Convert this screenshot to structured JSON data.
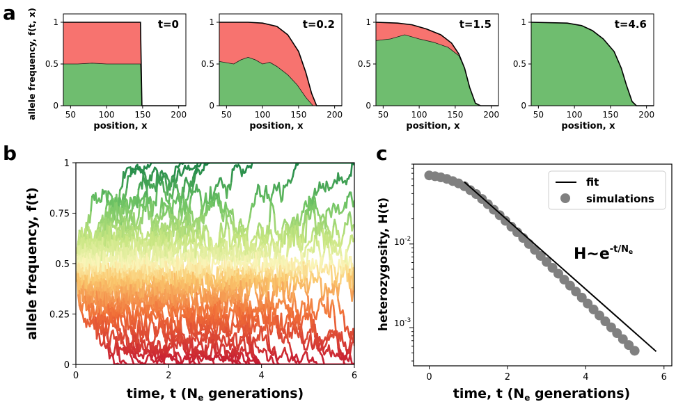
{
  "figure": {
    "panel_labels": [
      "a",
      "b",
      "c"
    ],
    "tick_labels_log": [
      "10",
      "-2",
      "10",
      "-3"
    ]
  },
  "chart_data": [
    {
      "panel": "a",
      "type": "area",
      "ylabel": "allele frequency, f(t, x)",
      "xlabel": "position, x",
      "xticks": [
        "50",
        "100",
        "150",
        "200"
      ],
      "yticks": [
        "0",
        "0.5",
        "1"
      ],
      "xlim": [
        40,
        210
      ],
      "ylim": [
        0,
        1.1
      ],
      "colors": {
        "total": "#f7736f",
        "green": "#6fbd6f",
        "line": "#000000"
      },
      "subplots": [
        {
          "label": "t=0",
          "total": [
            [
              40,
              1
            ],
            [
              147,
              1
            ],
            [
              149,
              0
            ],
            [
              210,
              0
            ]
          ],
          "green": [
            [
              40,
              0.5
            ],
            [
              60,
              0.5
            ],
            [
              80,
              0.51
            ],
            [
              100,
              0.5
            ],
            [
              120,
              0.5
            ],
            [
              147,
              0.5
            ],
            [
              149,
              0
            ],
            [
              210,
              0
            ]
          ]
        },
        {
          "label": "t=0.2",
          "total": [
            [
              40,
              1
            ],
            [
              80,
              1
            ],
            [
              100,
              0.99
            ],
            [
              120,
              0.95
            ],
            [
              135,
              0.85
            ],
            [
              150,
              0.65
            ],
            [
              160,
              0.4
            ],
            [
              168,
              0.15
            ],
            [
              175,
              0
            ],
            [
              210,
              0
            ]
          ],
          "green": [
            [
              40,
              0.53
            ],
            [
              60,
              0.5
            ],
            [
              70,
              0.55
            ],
            [
              80,
              0.58
            ],
            [
              90,
              0.55
            ],
            [
              100,
              0.5
            ],
            [
              110,
              0.52
            ],
            [
              120,
              0.47
            ],
            [
              135,
              0.37
            ],
            [
              148,
              0.25
            ],
            [
              160,
              0.1
            ],
            [
              170,
              0
            ],
            [
              210,
              0
            ]
          ]
        },
        {
          "label": "t=1.5",
          "total": [
            [
              40,
              1
            ],
            [
              70,
              0.99
            ],
            [
              90,
              0.97
            ],
            [
              110,
              0.92
            ],
            [
              130,
              0.85
            ],
            [
              145,
              0.75
            ],
            [
              155,
              0.62
            ],
            [
              163,
              0.45
            ],
            [
              170,
              0.22
            ],
            [
              178,
              0.03
            ],
            [
              185,
              0
            ],
            [
              210,
              0
            ]
          ],
          "green": [
            [
              40,
              0.78
            ],
            [
              60,
              0.8
            ],
            [
              80,
              0.85
            ],
            [
              100,
              0.8
            ],
            [
              120,
              0.76
            ],
            [
              140,
              0.7
            ],
            [
              155,
              0.6
            ],
            [
              163,
              0.45
            ],
            [
              170,
              0.22
            ],
            [
              178,
              0.03
            ],
            [
              185,
              0
            ],
            [
              210,
              0
            ]
          ]
        },
        {
          "label": "t=4.6",
          "total": [
            [
              40,
              1
            ],
            [
              90,
              0.99
            ],
            [
              110,
              0.96
            ],
            [
              125,
              0.9
            ],
            [
              140,
              0.8
            ],
            [
              155,
              0.65
            ],
            [
              165,
              0.45
            ],
            [
              172,
              0.25
            ],
            [
              180,
              0.05
            ],
            [
              186,
              0
            ],
            [
              210,
              0
            ]
          ],
          "green": [
            [
              40,
              1
            ],
            [
              90,
              0.99
            ],
            [
              110,
              0.96
            ],
            [
              125,
              0.9
            ],
            [
              140,
              0.8
            ],
            [
              155,
              0.65
            ],
            [
              165,
              0.45
            ],
            [
              172,
              0.25
            ],
            [
              180,
              0.05
            ],
            [
              186,
              0
            ],
            [
              210,
              0
            ]
          ]
        }
      ]
    },
    {
      "panel": "b",
      "type": "line",
      "title": "",
      "ylabel": "allele frequency, f(t)",
      "xlabel_main": "time, t (N",
      "xlabel_sub": "e",
      "xlabel_tail": " generations)",
      "xticks": [
        "0",
        "2",
        "4",
        "6"
      ],
      "yticks": [
        "0",
        "0.25",
        "0.5",
        "0.75",
        "1"
      ],
      "xlim": [
        0,
        6
      ],
      "ylim": [
        0,
        1
      ],
      "n_trajectories": 40,
      "start_value": 0.5
    },
    {
      "panel": "c",
      "type": "scatter",
      "ylabel": "heterozygosity, H(t)",
      "xlabel_main": "time, t (N",
      "xlabel_sub": "e",
      "xlabel_tail": " generations)",
      "xticks": [
        "0",
        "2",
        "4",
        "6"
      ],
      "xlim": [
        -0.4,
        6.2
      ],
      "ylim": [
        0.00035,
        0.09
      ],
      "legend": [
        "fit",
        "simulations"
      ],
      "legend_position": "top-right",
      "annotation_main": "H~e",
      "annotation_exp": "-t/N",
      "annotation_exp_sub": "e",
      "fit_line": {
        "x": [
          0.9,
          5.8
        ],
        "y": [
          0.055,
          0.00052
        ]
      },
      "simulations": {
        "x": [
          0,
          0.15,
          0.3,
          0.45,
          0.6,
          0.75,
          0.9,
          1.05,
          1.2,
          1.35,
          1.5,
          1.65,
          1.8,
          1.95,
          2.1,
          2.25,
          2.4,
          2.55,
          2.7,
          2.85,
          3.0,
          3.15,
          3.3,
          3.45,
          3.6,
          3.75,
          3.9,
          4.05,
          4.2,
          4.35,
          4.5,
          4.65,
          4.8,
          4.95,
          5.1,
          5.25
        ],
        "y": [
          0.066,
          0.0645,
          0.0625,
          0.06,
          0.0565,
          0.053,
          0.049,
          0.044,
          0.0395,
          0.0345,
          0.0299,
          0.0257,
          0.0221,
          0.0189,
          0.0161,
          0.0138,
          0.0118,
          0.01,
          0.0085,
          0.0072,
          0.0061,
          0.0052,
          0.00442,
          0.00375,
          0.00318,
          0.0027,
          0.00229,
          0.00194,
          0.00165,
          0.0014,
          0.00119,
          0.00101,
          0.00086,
          0.00073,
          0.00062,
          0.00053
        ]
      }
    }
  ]
}
